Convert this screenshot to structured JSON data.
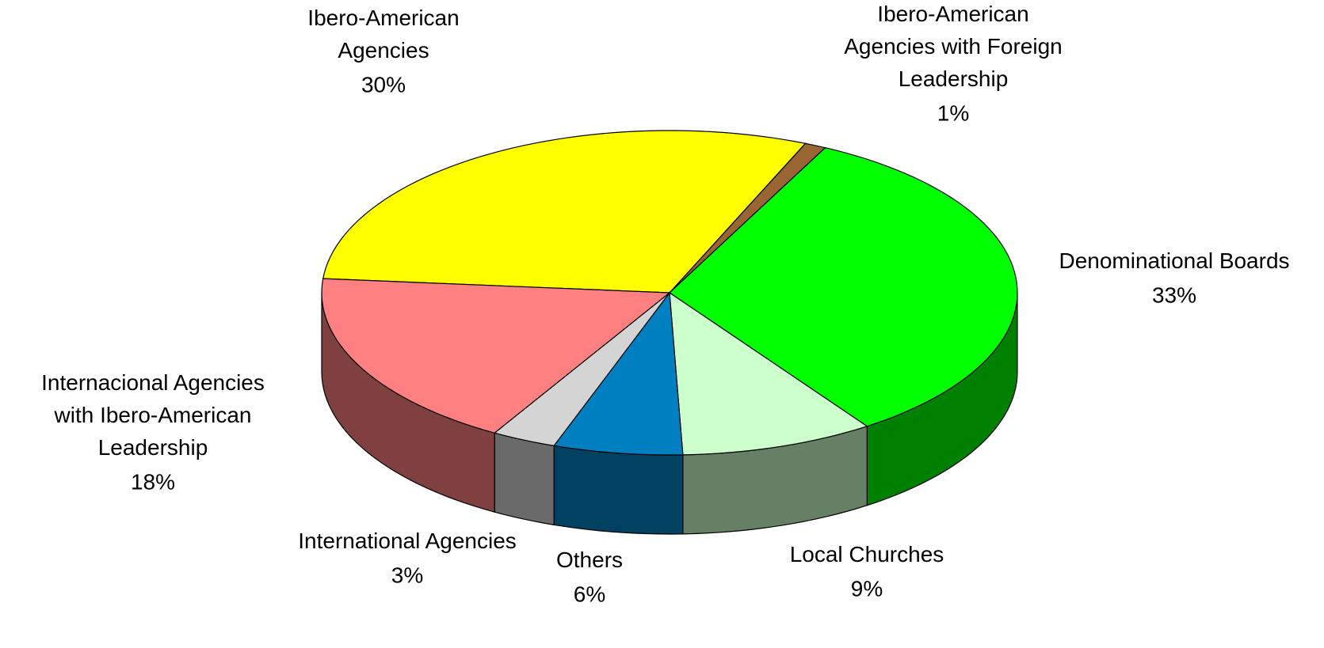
{
  "chart_data": {
    "type": "pie3d",
    "categories": [
      "Ibero-American Agencies",
      "Ibero-American Agencies with Foreign Leadership",
      "Denominational Boards",
      "Local Churches",
      "Others",
      "International Agencies",
      "Internacional Agencies with Ibero-American Leadership"
    ],
    "values": [
      30,
      1,
      33,
      9,
      6,
      3,
      18
    ],
    "value_labels": [
      "30%",
      "1%",
      "33%",
      "9%",
      "6%",
      "3%",
      "18%"
    ],
    "colors": [
      "#ffff00",
      "#996633",
      "#00ff00",
      "#ccffcc",
      "#0080c0",
      "#d4d4d4",
      "#ff8080"
    ],
    "side_colors": [
      "#808000",
      "#4d3319",
      "#008000",
      "#668066",
      "#004060",
      "#6a6a6a",
      "#804040"
    ]
  }
}
